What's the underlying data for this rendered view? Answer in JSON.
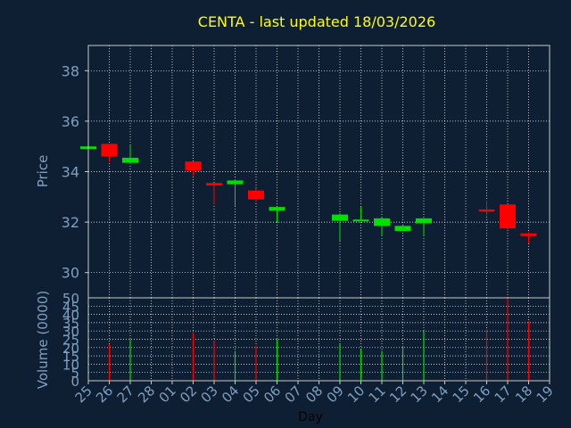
{
  "title": "CENTA - last updated 18/03/2026",
  "colors": {
    "background": "#0f1f33",
    "title": "#ffff00",
    "axis_text": "#7f9fbf",
    "frame": "#c8c8c8",
    "grid": "#ffffff",
    "up": "#00e000",
    "down": "#ff0000",
    "xlabel": "#000000"
  },
  "chart_data": [
    {
      "type": "candlestick",
      "ylabel": "Price",
      "ylim": [
        29,
        39
      ],
      "yticks": [
        30,
        32,
        34,
        36,
        38
      ],
      "grid": true,
      "categories": [
        "25",
        "26",
        "27",
        "28",
        "01",
        "02",
        "03",
        "04",
        "05",
        "06",
        "07",
        "08",
        "09",
        "10",
        "11",
        "12",
        "13",
        "14",
        "15",
        "16",
        "17",
        "18",
        "19"
      ],
      "candles": [
        {
          "i": 0,
          "open": 34.9,
          "close": 35.0,
          "high": 35.0,
          "low": 34.9,
          "dir": "up"
        },
        {
          "i": 1,
          "open": 35.1,
          "close": 34.6,
          "high": 35.1,
          "low": 34.4,
          "dir": "down"
        },
        {
          "i": 2,
          "open": 34.35,
          "close": 34.55,
          "high": 35.05,
          "low": 34.3,
          "dir": "up"
        },
        {
          "i": 5,
          "open": 34.4,
          "close": 34.05,
          "high": 34.4,
          "low": 33.85,
          "dir": "down"
        },
        {
          "i": 6,
          "open": 33.55,
          "close": 33.45,
          "high": 33.55,
          "low": 32.7,
          "dir": "down"
        },
        {
          "i": 7,
          "open": 33.5,
          "close": 33.65,
          "high": 33.7,
          "low": 32.65,
          "dir": "up"
        },
        {
          "i": 8,
          "open": 33.25,
          "close": 32.9,
          "high": 33.35,
          "low": 32.8,
          "dir": "down"
        },
        {
          "i": 9,
          "open": 32.45,
          "close": 32.6,
          "high": 32.6,
          "low": 32.0,
          "dir": "up"
        },
        {
          "i": 12,
          "open": 32.05,
          "close": 32.3,
          "high": 32.35,
          "low": 31.25,
          "dir": "up"
        },
        {
          "i": 13,
          "open": 32.05,
          "close": 32.1,
          "high": 32.6,
          "low": 32.05,
          "dir": "up"
        },
        {
          "i": 14,
          "open": 31.85,
          "close": 32.15,
          "high": 32.2,
          "low": 31.45,
          "dir": "up"
        },
        {
          "i": 15,
          "open": 31.65,
          "close": 31.85,
          "high": 31.85,
          "low": 31.65,
          "dir": "up"
        },
        {
          "i": 16,
          "open": 31.95,
          "close": 32.15,
          "high": 32.15,
          "low": 31.45,
          "dir": "up"
        },
        {
          "i": 19,
          "open": 32.5,
          "close": 32.45,
          "high": 32.85,
          "low": 32.25,
          "dir": "down"
        },
        {
          "i": 20,
          "open": 32.7,
          "close": 31.75,
          "high": 32.7,
          "low": 31.7,
          "dir": "down"
        },
        {
          "i": 21,
          "open": 31.55,
          "close": 31.45,
          "high": 31.6,
          "low": 31.15,
          "dir": "down"
        }
      ]
    },
    {
      "type": "bar",
      "ylabel": "Volume (0000)",
      "xlabel": "Day",
      "ylim": [
        0,
        50
      ],
      "yticks": [
        0,
        5,
        10,
        15,
        20,
        25,
        30,
        35,
        40,
        45,
        50
      ],
      "grid": true,
      "bars": [
        {
          "i": 1,
          "value": 22,
          "dir": "down"
        },
        {
          "i": 2,
          "value": 25,
          "dir": "up"
        },
        {
          "i": 5,
          "value": 29,
          "dir": "down"
        },
        {
          "i": 6,
          "value": 24,
          "dir": "down"
        },
        {
          "i": 7,
          "value": 18,
          "dir": "up"
        },
        {
          "i": 8,
          "value": 21,
          "dir": "down"
        },
        {
          "i": 9,
          "value": 25,
          "dir": "up"
        },
        {
          "i": 12,
          "value": 22,
          "dir": "up"
        },
        {
          "i": 13,
          "value": 19,
          "dir": "up"
        },
        {
          "i": 14,
          "value": 18,
          "dir": "up"
        },
        {
          "i": 15,
          "value": 21,
          "dir": "up"
        },
        {
          "i": 16,
          "value": 30,
          "dir": "up"
        },
        {
          "i": 19,
          "value": 31,
          "dir": "down"
        },
        {
          "i": 20,
          "value": 50,
          "dir": "down"
        },
        {
          "i": 21,
          "value": 36,
          "dir": "down"
        }
      ]
    }
  ]
}
